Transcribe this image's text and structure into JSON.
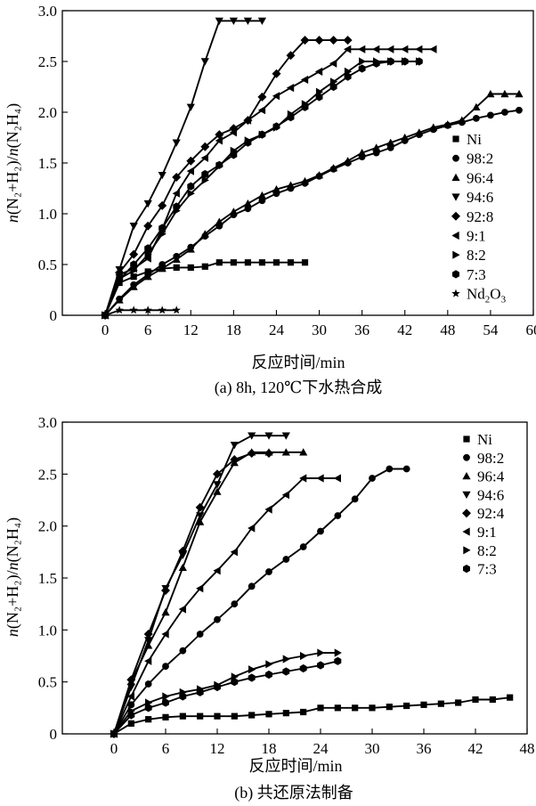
{
  "chart_data": [
    {
      "type": "line",
      "caption": "(a) 8h, 120℃下水热合成",
      "xlabel": "反应时间/min",
      "ylabel_prefix": "n",
      "ylabel_mid": "(N₂+H₂)/",
      "ylabel_suffix": "(N₂H₄)",
      "xlim": [
        -6,
        60
      ],
      "ylim": [
        0,
        3
      ],
      "xticks": [
        0,
        6,
        12,
        18,
        24,
        30,
        36,
        42,
        48,
        54,
        60
      ],
      "yticks": [
        0,
        0.5,
        1.0,
        1.5,
        2.0,
        2.5,
        3.0
      ],
      "ytick_labels": [
        "0",
        "0.5",
        "1.0",
        "1.5",
        "2.0",
        "2.5",
        "3.0"
      ],
      "legend": "right",
      "series": [
        {
          "name": "Ni",
          "legend_main": "Ni",
          "marker": "square",
          "x": [
            0,
            2,
            4,
            6,
            8,
            10,
            12,
            14,
            16,
            18,
            20,
            22,
            24,
            26,
            28
          ],
          "y": [
            0,
            0.32,
            0.38,
            0.43,
            0.46,
            0.47,
            0.47,
            0.48,
            0.52,
            0.52,
            0.52,
            0.52,
            0.52,
            0.52,
            0.52
          ]
        },
        {
          "name": "98:2",
          "legend_main": "98:2",
          "marker": "circle",
          "x": [
            0,
            2,
            4,
            6,
            8,
            10,
            12,
            14,
            16,
            18,
            20,
            22,
            24,
            26,
            28,
            30,
            32,
            34,
            36,
            38,
            40,
            42,
            44,
            46,
            48,
            50,
            52,
            54,
            56,
            58
          ],
          "y": [
            0,
            0.16,
            0.3,
            0.4,
            0.5,
            0.58,
            0.67,
            0.78,
            0.88,
            0.99,
            1.05,
            1.13,
            1.2,
            1.25,
            1.3,
            1.37,
            1.44,
            1.5,
            1.56,
            1.6,
            1.65,
            1.72,
            1.78,
            1.83,
            1.87,
            1.9,
            1.94,
            1.97,
            2.0,
            2.02
          ]
        },
        {
          "name": "96:4",
          "legend_main": "96:4",
          "marker": "triangle-up",
          "x": [
            0,
            2,
            4,
            6,
            8,
            10,
            12,
            14,
            16,
            18,
            20,
            22,
            24,
            26,
            28,
            30,
            32,
            34,
            36,
            38,
            40,
            42,
            44,
            46,
            48,
            50,
            52,
            54,
            56,
            58
          ],
          "y": [
            0,
            0.15,
            0.28,
            0.38,
            0.46,
            0.55,
            0.65,
            0.8,
            0.92,
            1.02,
            1.1,
            1.18,
            1.24,
            1.28,
            1.32,
            1.38,
            1.45,
            1.52,
            1.6,
            1.65,
            1.7,
            1.75,
            1.8,
            1.85,
            1.88,
            1.92,
            2.05,
            2.18,
            2.18,
            2.18
          ]
        },
        {
          "name": "94:6",
          "legend_main": "94:6",
          "marker": "triangle-down",
          "x": [
            0,
            2,
            4,
            6,
            8,
            10,
            12,
            14,
            16,
            18,
            20,
            22
          ],
          "y": [
            0,
            0.45,
            0.88,
            1.1,
            1.38,
            1.7,
            2.05,
            2.5,
            2.9,
            2.9,
            2.9,
            2.9
          ]
        },
        {
          "name": "92:8",
          "legend_main": "92:8",
          "marker": "diamond",
          "x": [
            0,
            2,
            4,
            6,
            8,
            10,
            12,
            14,
            16,
            18,
            20,
            22,
            24,
            26,
            28,
            30,
            32,
            34
          ],
          "y": [
            0,
            0.42,
            0.6,
            0.88,
            1.08,
            1.36,
            1.52,
            1.66,
            1.78,
            1.84,
            1.92,
            2.15,
            2.38,
            2.56,
            2.71,
            2.71,
            2.71,
            2.71
          ]
        },
        {
          "name": "9:1",
          "legend_main": "9:1",
          "marker": "triangle-left",
          "x": [
            0,
            2,
            4,
            6,
            8,
            10,
            12,
            14,
            16,
            18,
            20,
            22,
            24,
            26,
            28,
            30,
            32,
            34,
            36,
            38,
            40,
            42,
            44,
            46
          ],
          "y": [
            0,
            0.4,
            0.46,
            0.56,
            0.85,
            1.2,
            1.42,
            1.55,
            1.72,
            1.8,
            1.92,
            2.02,
            2.16,
            2.24,
            2.32,
            2.4,
            2.48,
            2.62,
            2.62,
            2.62,
            2.62,
            2.62,
            2.62,
            2.62
          ]
        },
        {
          "name": "8:2",
          "legend_main": "8:2",
          "marker": "triangle-right",
          "x": [
            0,
            2,
            4,
            6,
            8,
            10,
            12,
            14,
            16,
            18,
            20,
            22,
            24,
            26,
            28,
            30,
            32,
            34,
            36,
            38,
            40,
            42,
            44
          ],
          "y": [
            0,
            0.36,
            0.44,
            0.6,
            0.8,
            1.03,
            1.2,
            1.33,
            1.47,
            1.62,
            1.72,
            1.78,
            1.85,
            1.98,
            2.08,
            2.2,
            2.3,
            2.4,
            2.5,
            2.5,
            2.5,
            2.5,
            2.5
          ]
        },
        {
          "name": "7:3",
          "legend_main": "7:3",
          "marker": "hexagon",
          "x": [
            0,
            2,
            4,
            6,
            8,
            10,
            12,
            14,
            16,
            18,
            20,
            22,
            24,
            26,
            28,
            30,
            32,
            34,
            36,
            38,
            40,
            42,
            44
          ],
          "y": [
            0,
            0.35,
            0.5,
            0.66,
            0.86,
            1.07,
            1.27,
            1.39,
            1.48,
            1.58,
            1.7,
            1.78,
            1.86,
            1.95,
            2.05,
            2.15,
            2.25,
            2.35,
            2.43,
            2.48,
            2.5,
            2.5,
            2.5
          ]
        },
        {
          "name": "Nd₂O₃",
          "legend_main": "Nd",
          "legend_sub1": "2",
          "legend_mid": "O",
          "legend_sub2": "3",
          "marker": "star",
          "x": [
            0,
            2,
            4,
            6,
            8,
            10
          ],
          "y": [
            0,
            0.05,
            0.05,
            0.05,
            0.05,
            0.05
          ]
        }
      ]
    },
    {
      "type": "line",
      "caption": "(b) 共还原法制备",
      "xlabel": "反应时间/min",
      "ylabel_prefix": "n",
      "ylabel_mid": "(N₂+H₂)/",
      "ylabel_suffix": "(N₂H₄)",
      "xlim": [
        -6,
        48
      ],
      "ylim": [
        0,
        3
      ],
      "xticks": [
        0,
        6,
        12,
        18,
        24,
        30,
        36,
        42,
        48
      ],
      "yticks": [
        0,
        0.5,
        1.0,
        1.5,
        2.0,
        2.5,
        3.0
      ],
      "ytick_labels": [
        "0",
        "0.5",
        "1.0",
        "1.5",
        "2.0",
        "2.5",
        "3.0"
      ],
      "legend": "top-right",
      "series": [
        {
          "name": "Ni",
          "legend_main": "Ni",
          "marker": "square",
          "x": [
            0,
            2,
            4,
            6,
            8,
            10,
            12,
            14,
            16,
            18,
            20,
            22,
            24,
            26,
            28,
            30,
            32,
            34,
            36,
            38,
            40,
            42,
            44,
            46
          ],
          "y": [
            0,
            0.1,
            0.14,
            0.16,
            0.17,
            0.17,
            0.17,
            0.17,
            0.18,
            0.19,
            0.2,
            0.21,
            0.25,
            0.25,
            0.25,
            0.25,
            0.26,
            0.27,
            0.28,
            0.29,
            0.3,
            0.33,
            0.33,
            0.35
          ]
        },
        {
          "name": "98:2",
          "legend_main": "98:2",
          "marker": "circle",
          "x": [
            0,
            2,
            4,
            6,
            8,
            10,
            12,
            14,
            16,
            18,
            20,
            22,
            24,
            26,
            28,
            30,
            32,
            34
          ],
          "y": [
            0,
            0.28,
            0.48,
            0.65,
            0.8,
            0.96,
            1.1,
            1.25,
            1.42,
            1.56,
            1.68,
            1.8,
            1.95,
            2.1,
            2.26,
            2.46,
            2.55,
            2.55
          ]
        },
        {
          "name": "96:4",
          "legend_main": "96:4",
          "marker": "triangle-up",
          "x": [
            0,
            2,
            4,
            6,
            8,
            10,
            12,
            14,
            16,
            18,
            20,
            22
          ],
          "y": [
            0,
            0.5,
            0.85,
            1.17,
            1.6,
            2.04,
            2.33,
            2.61,
            2.71,
            2.71,
            2.71,
            2.71
          ]
        },
        {
          "name": "94:6",
          "legend_main": "94:6",
          "marker": "triangle-down",
          "x": [
            0,
            2,
            4,
            6,
            8,
            10,
            12,
            14,
            16,
            18,
            20
          ],
          "y": [
            0,
            0.45,
            0.9,
            1.4,
            1.72,
            2.1,
            2.4,
            2.78,
            2.87,
            2.87,
            2.87
          ]
        },
        {
          "name": "92:4",
          "legend_main": "92:4",
          "marker": "diamond",
          "x": [
            0,
            2,
            4,
            6,
            8,
            10,
            12,
            14,
            16,
            18
          ],
          "y": [
            0,
            0.52,
            0.96,
            1.38,
            1.76,
            2.18,
            2.5,
            2.64,
            2.7,
            2.7
          ]
        },
        {
          "name": "9:1",
          "legend_main": "9:1",
          "marker": "triangle-left",
          "x": [
            0,
            2,
            4,
            6,
            8,
            10,
            12,
            14,
            16,
            18,
            20,
            22,
            24,
            26
          ],
          "y": [
            0,
            0.36,
            0.7,
            0.96,
            1.2,
            1.4,
            1.57,
            1.75,
            1.98,
            2.16,
            2.3,
            2.46,
            2.46,
            2.46
          ]
        },
        {
          "name": "8:2",
          "legend_main": "8:2",
          "marker": "triangle-right",
          "x": [
            0,
            2,
            4,
            6,
            8,
            10,
            12,
            14,
            16,
            18,
            20,
            22,
            24,
            26
          ],
          "y": [
            0,
            0.22,
            0.3,
            0.36,
            0.4,
            0.43,
            0.47,
            0.55,
            0.62,
            0.67,
            0.72,
            0.75,
            0.78,
            0.78
          ]
        },
        {
          "name": "7:3",
          "legend_main": "7:3",
          "marker": "hexagon",
          "x": [
            0,
            2,
            4,
            6,
            8,
            10,
            12,
            14,
            16,
            18,
            20,
            22,
            24,
            26
          ],
          "y": [
            0,
            0.18,
            0.25,
            0.3,
            0.36,
            0.4,
            0.45,
            0.5,
            0.54,
            0.57,
            0.6,
            0.63,
            0.66,
            0.7
          ]
        }
      ]
    }
  ]
}
